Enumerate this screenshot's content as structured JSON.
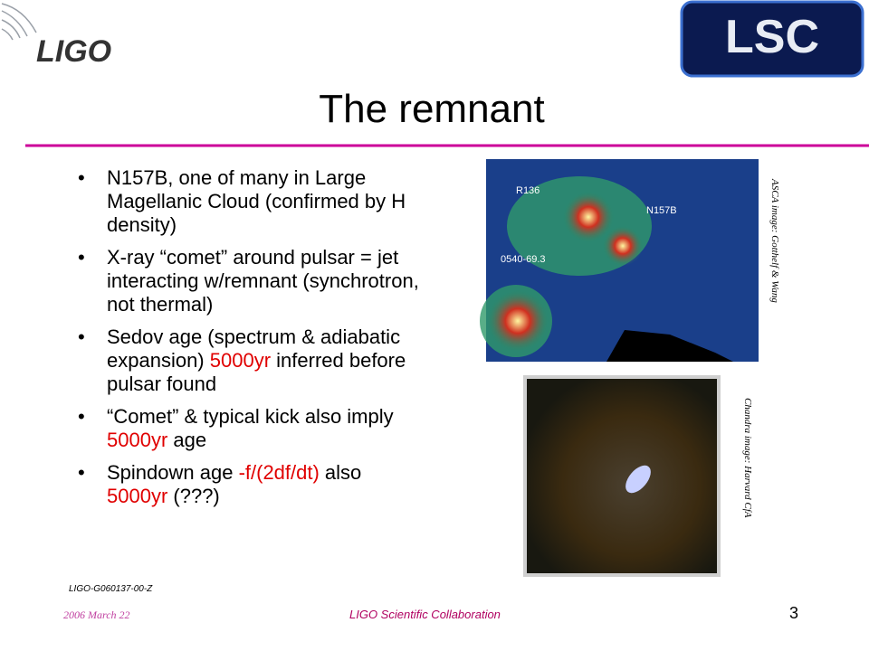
{
  "header": {
    "logo_left": "LIGO",
    "logo_right": "LSC",
    "title": "The remnant"
  },
  "bullets": [
    [
      {
        "text": "N157B, one of many in Large Magellanic Cloud (confirmed by H density)",
        "color": "#000000"
      }
    ],
    [
      {
        "text": "X-ray “comet” around pulsar = jet interacting w/remnant (synchrotron, not thermal)",
        "color": "#000000"
      }
    ],
    [
      {
        "text": "Sedov age (spectrum & adiabatic expansion) ",
        "color": "#000000"
      },
      {
        "text": "5000yr",
        "color": "#e00000"
      },
      {
        "text": " inferred before pulsar found",
        "color": "#000000"
      }
    ],
    [
      {
        "text": "“Comet” & typical kick also imply ",
        "color": "#000000"
      },
      {
        "text": "5000yr",
        "color": "#e00000"
      },
      {
        "text": " age",
        "color": "#000000"
      }
    ],
    [
      {
        "text": "Spindown age ",
        "color": "#000000"
      },
      {
        "text": "-f/(2df/dt)",
        "color": "#e00000"
      },
      {
        "text": " also ",
        "color": "#000000"
      },
      {
        "text": "5000yr",
        "color": "#e00000"
      },
      {
        "text": " (???)",
        "color": "#000000"
      }
    ]
  ],
  "images": {
    "asca_labels": [
      "R136",
      "N157B",
      "0540-69.3"
    ],
    "asca_caption": "ASCA image: Gotthelf & Wang",
    "chandra_caption": "Chandra image: Harvard CfA"
  },
  "footer": {
    "doc_id": "LIGO-G060137-00-Z",
    "date": "2006 March 22",
    "org": "LIGO Scientific Collaboration",
    "page": "3"
  }
}
